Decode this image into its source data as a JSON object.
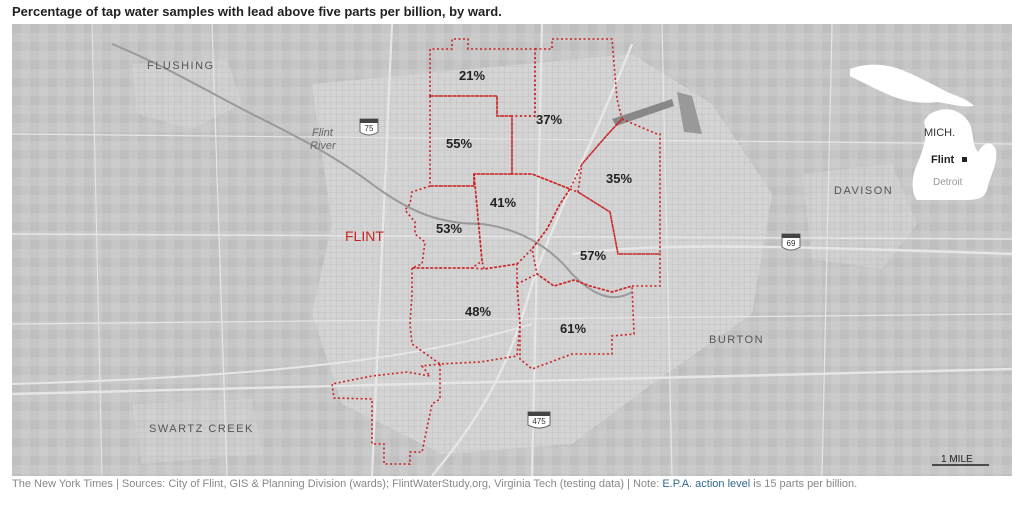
{
  "title": "Percentage of tap water samples with lead above five parts per billion, by ward.",
  "map": {
    "city_label": "FLINT",
    "place_labels": {
      "flushing": "FLUSHING",
      "davison": "DAVISON",
      "burton": "BURTON",
      "swartz_creek": "SWARTZ CREEK"
    },
    "river_label_line1": "Flint",
    "river_label_line2": "River",
    "highways": {
      "i75": "75",
      "i69": "69",
      "i475": "475"
    },
    "wards": [
      {
        "ward": 1,
        "value": "21%"
      },
      {
        "ward": 2,
        "value": "37%"
      },
      {
        "ward": 3,
        "value": "55%"
      },
      {
        "ward": 4,
        "value": "35%"
      },
      {
        "ward": 5,
        "value": "41%"
      },
      {
        "ward": 6,
        "value": "53%"
      },
      {
        "ward": 7,
        "value": "57%"
      },
      {
        "ward": 8,
        "value": "48%"
      },
      {
        "ward": 9,
        "value": "61%"
      }
    ],
    "scale_label": "1 MILE",
    "inset": {
      "state": "MICH.",
      "city": "Flint",
      "detroit": "Detroit"
    },
    "colors": {
      "ward_border": "#cc2222",
      "city_label": "#cc2222",
      "map_bg": "#c8c8c8"
    }
  },
  "footer": {
    "credit": "The New York Times",
    "sources": "Sources: City of Flint, GIS & Planning Division (wards); FlintWaterStudy.org, Virginia Tech (testing data)",
    "note_prefix": "Note:",
    "note_link": "E.P.A. action level",
    "note_suffix": "is 15 parts per billion."
  }
}
